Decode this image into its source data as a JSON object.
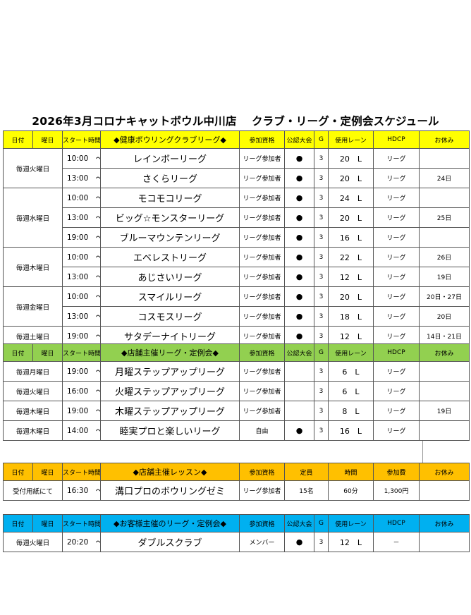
{
  "title": "2026年3月コロナキャットボウル中川店　 クラブ・リーグ・定例会スケジュール",
  "columns": [
    "日付",
    "曜日",
    "スタート時間",
    "参加資格",
    "公認大会",
    "G",
    "使用レーン",
    "HDCP",
    "お休み"
  ],
  "section1": {
    "header": "◆健康ボウリングクラブリーグ◆",
    "groups": [
      {
        "day": "毎週火曜日",
        "rows": [
          {
            "time": "10:00　～",
            "name": "レインボーリーグ",
            "qual": "リーグ参加者",
            "official": "●",
            "g": "3",
            "lane": "20　L",
            "hdcp": "リーグ",
            "off": ""
          },
          {
            "time": "13:00　～",
            "name": "さくらリーグ",
            "qual": "リーグ参加者",
            "official": "●",
            "g": "3",
            "lane": "20　L",
            "hdcp": "リーグ",
            "off": "24日"
          }
        ]
      },
      {
        "day": "毎週水曜日",
        "rows": [
          {
            "time": "10:00　～",
            "name": "モコモコリーグ",
            "qual": "リーグ参加者",
            "official": "●",
            "g": "3",
            "lane": "24　L",
            "hdcp": "リーグ",
            "off": ""
          },
          {
            "time": "13:00　～",
            "name": "ビッグ☆モンスターリーグ",
            "qual": "リーグ参加者",
            "official": "●",
            "g": "3",
            "lane": "20　L",
            "hdcp": "リーグ",
            "off": "25日"
          },
          {
            "time": "19:00　～",
            "name": "ブルーマウンテンリーグ",
            "qual": "リーグ参加者",
            "official": "●",
            "g": "3",
            "lane": "16　L",
            "hdcp": "リーグ",
            "off": ""
          }
        ]
      },
      {
        "day": "毎週木曜日",
        "rows": [
          {
            "time": "10:00　～",
            "name": "エベレストリーグ",
            "qual": "リーグ参加者",
            "official": "●",
            "g": "3",
            "lane": "22　L",
            "hdcp": "リーグ",
            "off": "26日"
          },
          {
            "time": "13:00　～",
            "name": "あじさいリーグ",
            "qual": "リーグ参加者",
            "official": "●",
            "g": "3",
            "lane": "12　L",
            "hdcp": "リーグ",
            "off": "19日"
          }
        ]
      },
      {
        "day": "毎週金曜日",
        "rows": [
          {
            "time": "10:00　～",
            "name": "スマイルリーグ",
            "qual": "リーグ参加者",
            "official": "●",
            "g": "3",
            "lane": "20　L",
            "hdcp": "リーグ",
            "off": "20日・27日"
          },
          {
            "time": "13:00　～",
            "name": "コスモスリーグ",
            "qual": "リーグ参加者",
            "official": "●",
            "g": "3",
            "lane": "18　L",
            "hdcp": "リーグ",
            "off": "20日"
          }
        ]
      },
      {
        "day": "毎週土曜日",
        "rows": [
          {
            "time": "19:00　～",
            "name": "サタデーナイトリーグ",
            "qual": "リーグ参加者",
            "official": "●",
            "g": "3",
            "lane": "12　L",
            "hdcp": "リーグ",
            "off": "14日・21日"
          }
        ]
      }
    ]
  },
  "section2": {
    "header": "◆店舗主催リーグ・定例会◆",
    "rows": [
      {
        "day": "毎週月曜日",
        "time": "19:00　～",
        "name": "月曜ステップアップリーグ",
        "qual": "リーグ参加者",
        "official": "",
        "g": "3",
        "lane": "6　L",
        "hdcp": "リーグ",
        "off": ""
      },
      {
        "day": "毎週火曜日",
        "time": "16:00　～",
        "name": "火曜ステップアップリーグ",
        "qual": "リーグ参加者",
        "official": "",
        "g": "3",
        "lane": "6　L",
        "hdcp": "リーグ",
        "off": ""
      },
      {
        "day": "毎週木曜日",
        "time": "19:00　～",
        "name": "木曜ステップアップリーグ",
        "qual": "リーグ参加者",
        "official": "",
        "g": "3",
        "lane": "8　L",
        "hdcp": "リーグ",
        "off": "19日"
      },
      {
        "day": "毎週木曜日",
        "time": "14:00　～",
        "name": "睦実プロと楽しいリーグ",
        "qual": "自由",
        "official": "●",
        "g": "3",
        "lane": "16　L",
        "hdcp": "リーグ",
        "off": ""
      }
    ]
  },
  "section3": {
    "header": "◆店舗主催レッスン◆",
    "columns": [
      "日付",
      "曜日",
      "スタート時間",
      "参加資格",
      "定員",
      "時間",
      "参加費",
      "お休み"
    ],
    "row": {
      "day": "受付用紙にて",
      "time": "16:30　～",
      "name": "溝口プロのボウリングゼミ",
      "qual": "リーグ参加者",
      "capacity": "15名",
      "duration": "60分",
      "fee": "1,300円",
      "off": ""
    }
  },
  "section4": {
    "header": "◆お客様主催のリーグ・定例会◆",
    "row": {
      "day": "毎週火曜日",
      "time": "20:20　～",
      "name": "ダブルスクラブ",
      "qual": "メンバー",
      "official": "●",
      "g": "3",
      "lane": "12　L",
      "hdcp": "－",
      "off": ""
    }
  },
  "colors": {
    "yellow": "#ffff00",
    "green": "#92d050",
    "orange": "#ffc000",
    "blue": "#00b0f0"
  }
}
